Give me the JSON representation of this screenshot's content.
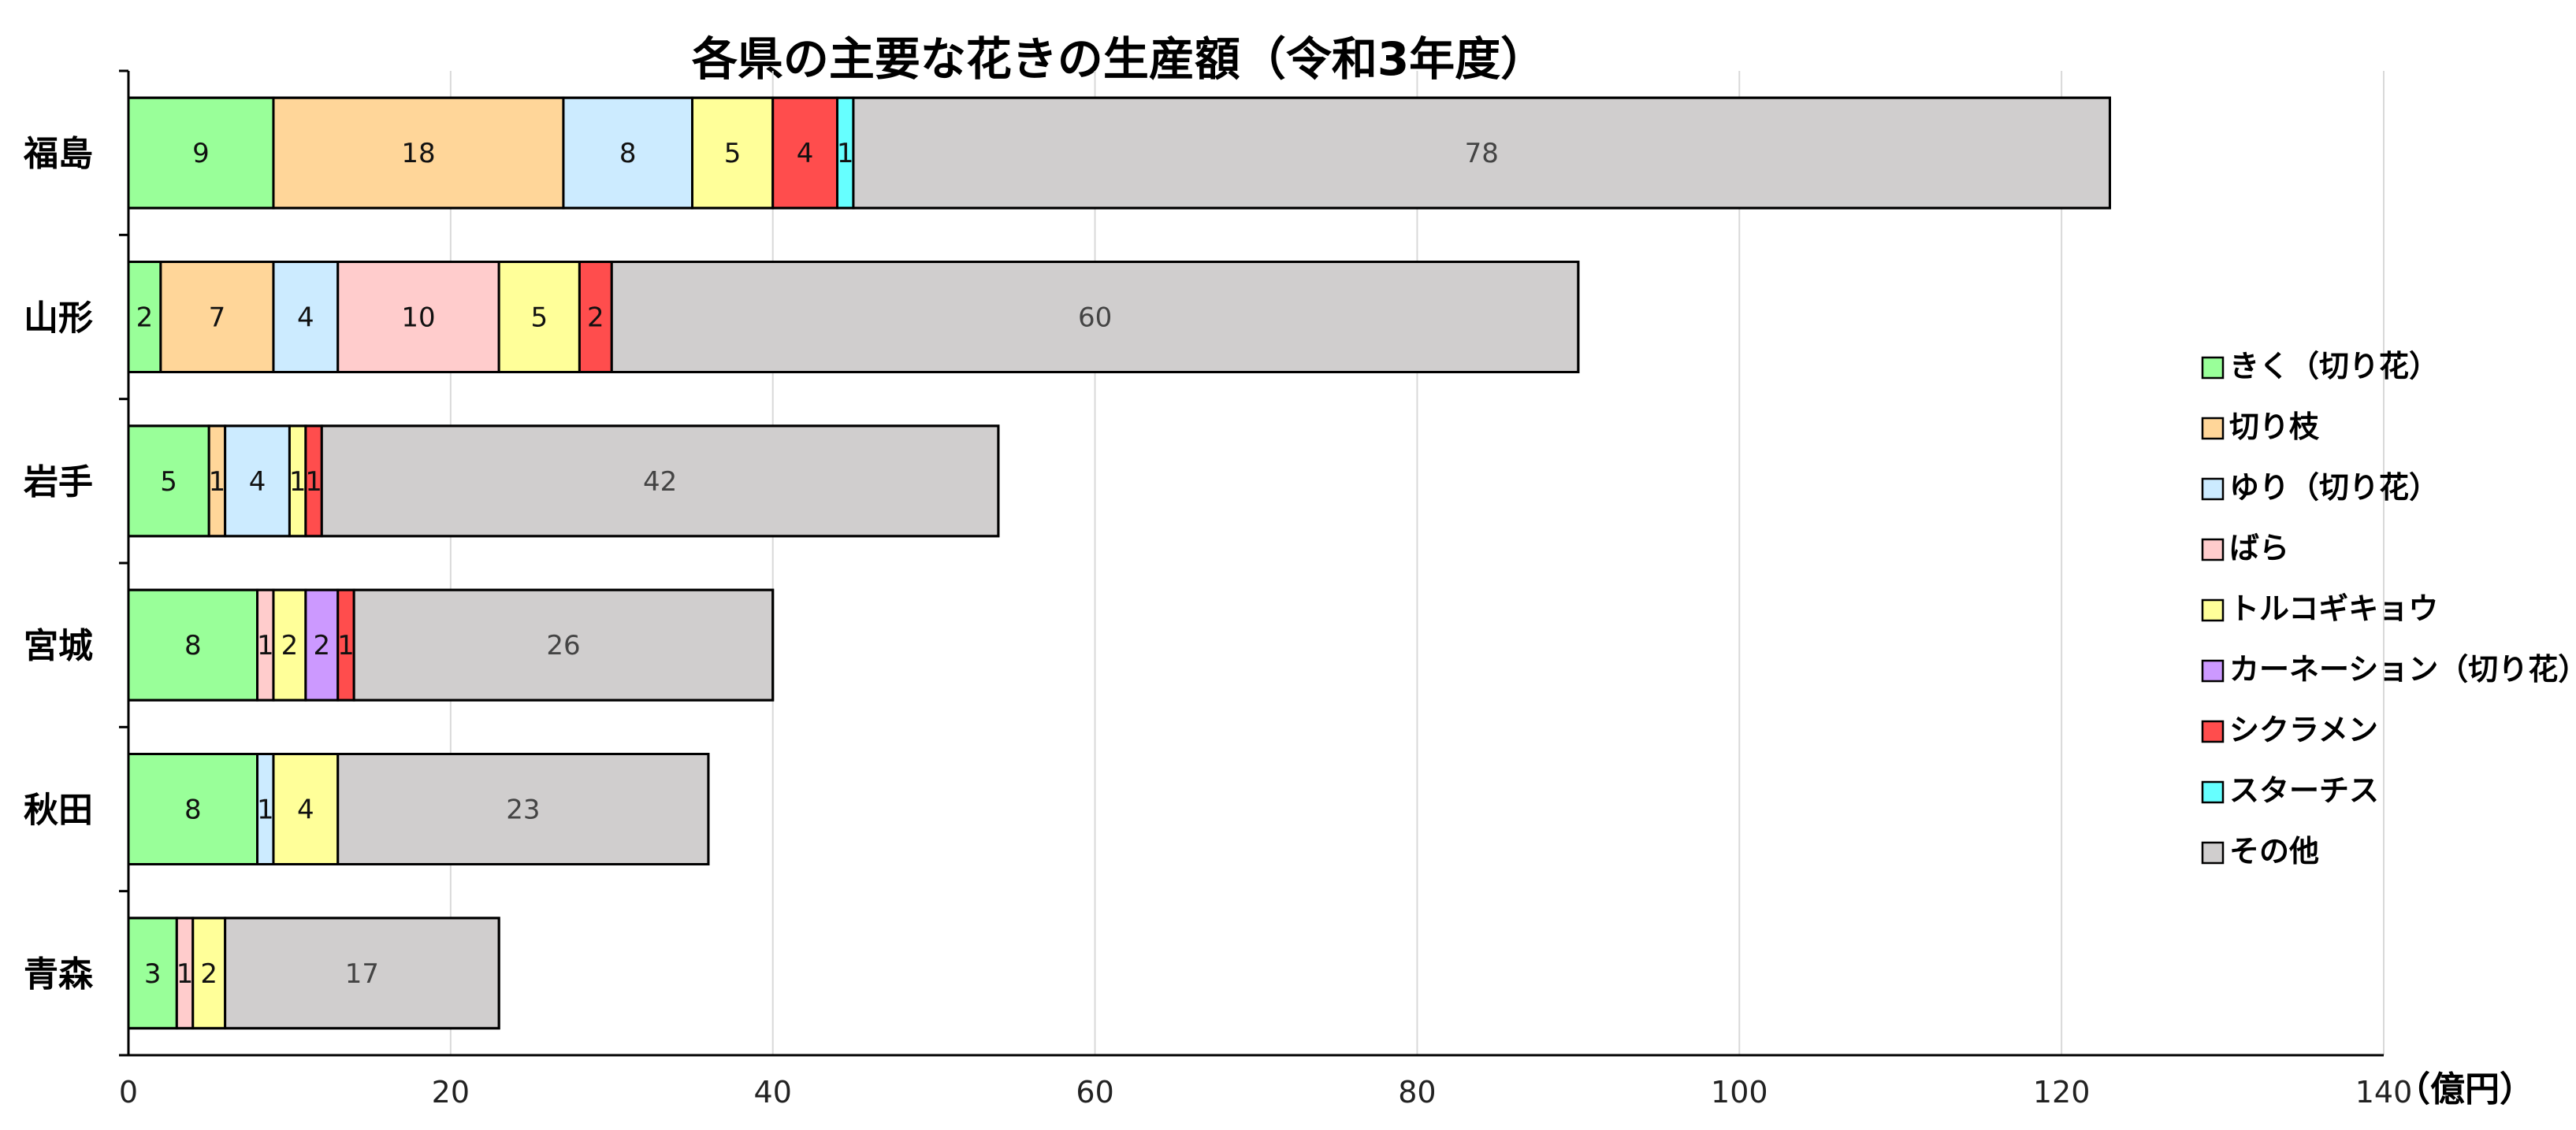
{
  "chart_data": {
    "type": "bar",
    "orientation": "horizontal",
    "stacked": true,
    "title": "各県の主要な花きの生産額（令和3年度）",
    "unit_label": "（億円）",
    "categories": [
      "福島",
      "山形",
      "岩手",
      "宮城",
      "秋田",
      "青森"
    ],
    "xlim": [
      0,
      140
    ],
    "xticks": [
      0,
      20,
      40,
      60,
      80,
      100,
      120,
      140
    ],
    "grid": "vertical",
    "legend_position": "right",
    "series": [
      {
        "name": "きく（切り花）",
        "color": "#99FF99",
        "values": [
          9,
          2,
          5,
          8,
          8,
          3
        ]
      },
      {
        "name": "切り枝",
        "color": "#FFD699",
        "values": [
          18,
          7,
          1,
          0,
          0,
          0
        ]
      },
      {
        "name": "ゆり（切り花）",
        "color": "#CCEBFF",
        "values": [
          8,
          4,
          4,
          0,
          1,
          0
        ]
      },
      {
        "name": "ばら",
        "color": "#FFCCCC",
        "values": [
          0,
          10,
          0,
          1,
          0,
          1
        ]
      },
      {
        "name": "トルコギキョウ",
        "color": "#FFFF99",
        "values": [
          5,
          5,
          1,
          2,
          4,
          2
        ]
      },
      {
        "name": "カーネーション（切り花）",
        "color": "#CC99FF",
        "values": [
          0,
          0,
          0,
          2,
          0,
          0
        ]
      },
      {
        "name": "シクラメン",
        "color": "#FF4D4D",
        "values": [
          4,
          2,
          1,
          1,
          0,
          0
        ]
      },
      {
        "name": "スターチス",
        "color": "#66FFFF",
        "values": [
          1,
          0,
          0,
          0,
          0,
          0
        ]
      },
      {
        "name": "その他",
        "color": "#D0CECE",
        "values": [
          78,
          60,
          42,
          26,
          23,
          17
        ]
      }
    ]
  }
}
